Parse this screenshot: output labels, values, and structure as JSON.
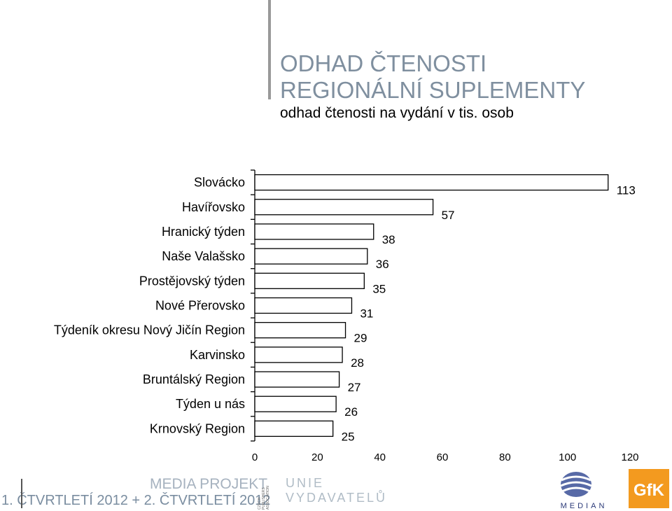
{
  "header": {
    "title_line1": "ODHAD ČTENOSTI",
    "title_line2": "REGIONÁLNÍ SUPLEMENTY",
    "subtitle": "odhad čtenosti na vydání v tis. osob"
  },
  "chart_data": {
    "type": "bar",
    "orientation": "horizontal",
    "categories": [
      "Slovácko",
      "Havířovsko",
      "Hranický týden",
      "Naše Valašsko",
      "Prostějovský týden",
      "Nové Přerovsko",
      "Týdeník okresu Nový Jičín Region",
      "Karvinsko",
      "Bruntálský Region",
      "Týden u nás",
      "Krnovský Region"
    ],
    "values": [
      113,
      57,
      38,
      36,
      35,
      31,
      29,
      28,
      27,
      26,
      25
    ],
    "xlim": [
      0,
      120
    ],
    "xticks": [
      0,
      20,
      40,
      60,
      80,
      100,
      120
    ],
    "title": "",
    "xlabel": "",
    "ylabel": "",
    "grid": false,
    "colors": {
      "bar_fill": "#ffffff",
      "bar_stroke": "#000000"
    }
  },
  "footer": {
    "project": "MEDIA PROJEKT",
    "period": "1. ČTVRTLETÍ 2012 + 2. ČTVRTLETÍ 2012",
    "association_text": "CZECH PUBLISHERS ASSOCIATION",
    "union_line1": "UNIE",
    "union_line2": "VYDAVATELŮ",
    "median_label": "MEDIAN",
    "gfk_label": "GfK"
  }
}
